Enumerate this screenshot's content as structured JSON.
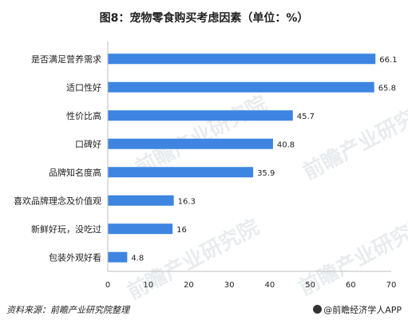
{
  "title": "图8：宠物零食购买考虑因素（单位：%）",
  "source": "资料来源：前瞻产业研究院整理",
  "brand": "@前瞻经济学人APP",
  "watermark": "前瞻产业研究院",
  "colors": {
    "bar": "#3d85e0",
    "axis": "#bfbfbf",
    "text": "#222222"
  },
  "chart_data": {
    "type": "bar",
    "orientation": "horizontal",
    "title": "图8：宠物零食购买考虑因素（单位：%）",
    "xlabel": "",
    "ylabel": "",
    "categories": [
      "是否满足营养需求",
      "适口性好",
      "性价比高",
      "口碑好",
      "品牌知名度高",
      "喜欢品牌理念及价值观",
      "新鲜好玩，没吃过",
      "包装外观好看"
    ],
    "values": [
      66.1,
      65.8,
      45.7,
      40.8,
      35.9,
      16.3,
      16,
      4.8
    ],
    "value_labels": [
      "66.1",
      "65.8",
      "45.7",
      "40.8",
      "35.9",
      "16.3",
      "16",
      "4.8"
    ],
    "xlim": [
      0,
      70
    ],
    "xticks": [
      0,
      10,
      20,
      30,
      40,
      50,
      60,
      70
    ],
    "grid": false,
    "legend": "none"
  }
}
